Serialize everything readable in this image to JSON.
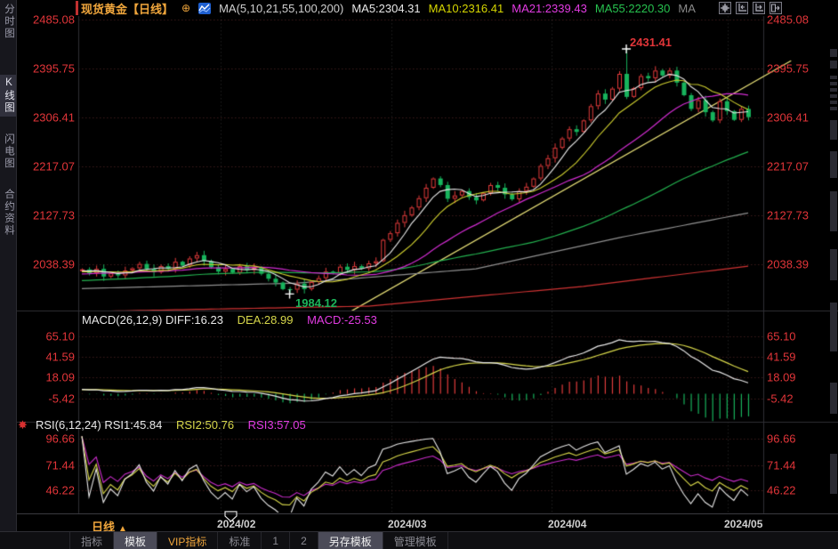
{
  "sidebar": {
    "items": [
      {
        "label": "分时图",
        "selected": false
      },
      {
        "label": "K线图",
        "selected": true
      },
      {
        "label": "闪电图",
        "selected": false
      },
      {
        "label": "合约资料",
        "selected": false
      }
    ]
  },
  "header": {
    "title": "现货黄金",
    "period_tag": "【日线】",
    "plus_icon": "⊕",
    "legend": {
      "ma_group": "MA(5,10,21,55,100,200)",
      "ma5": "MA5:2304.31",
      "ma10": "MA10:2316.41",
      "ma21": "MA21:2339.43",
      "ma55": "MA55:2220.30",
      "ma_extra": "MA"
    },
    "icons": [
      "pan-icon",
      "shift-left-icon",
      "shift-right-icon",
      "page-right-icon"
    ]
  },
  "macd": {
    "name": "MACD(26,12,9)",
    "diff": "DIFF:16.23",
    "dea": "DEA:28.99",
    "macd": "MACD:-25.53",
    "axis_labels": [
      "65.10",
      "41.59",
      "18.09",
      "-5.42"
    ]
  },
  "rsi": {
    "gear_icon": "✸",
    "name": "RSI(6,12,24)",
    "rsi1": "RSI1:45.84",
    "rsi2": "RSI2:50.76",
    "rsi3": "RSI3:57.05",
    "axis_labels": [
      "96.66",
      "71.44",
      "46.22"
    ]
  },
  "bottom": {
    "period": "日线",
    "period_arrow": "▲",
    "tabs": [
      {
        "label": "指标",
        "style": "plain"
      },
      {
        "label": "模板",
        "style": "active"
      },
      {
        "label": "VIP指标",
        "style": "vip"
      },
      {
        "label": "标准",
        "style": "plain"
      },
      {
        "label": "1",
        "style": "plain"
      },
      {
        "label": "2",
        "style": "plain"
      },
      {
        "label": "另存模板",
        "style": "active"
      },
      {
        "label": "管理模板",
        "style": "plain"
      }
    ]
  },
  "chart_data": {
    "type": "candlestick",
    "title": "现货黄金 日线 (Spot Gold Daily)",
    "price_axis_labels": [
      "2485.08",
      "2395.75",
      "2306.41",
      "2217.07",
      "2127.73",
      "2038.39"
    ],
    "x_labels": [
      "2024/02",
      "2024/03",
      "2024/04",
      "2024/05"
    ],
    "closes": [
      2029,
      2022,
      2030,
      2016,
      2022,
      2018,
      2027,
      2031,
      2039,
      2030,
      2024,
      2035,
      2030,
      2043,
      2036,
      2049,
      2055,
      2044,
      2033,
      2025,
      2030,
      2023,
      2035,
      2028,
      2032,
      2021,
      2012,
      2005,
      1993,
      1992,
      2003,
      1993,
      2006,
      2013,
      2025,
      2022,
      2034,
      2028,
      2035,
      2031,
      2040,
      2044,
      2083,
      2095,
      2114,
      2128,
      2142,
      2159,
      2178,
      2195,
      2183,
      2158,
      2164,
      2172,
      2161,
      2155,
      2168,
      2183,
      2178,
      2166,
      2157,
      2172,
      2180,
      2195,
      2218,
      2232,
      2251,
      2268,
      2285,
      2280,
      2301,
      2327,
      2350,
      2339,
      2359,
      2386,
      2344,
      2360,
      2382,
      2378,
      2392,
      2383,
      2392,
      2370,
      2347,
      2322,
      2338,
      2316,
      2301,
      2336,
      2318,
      2302,
      2322,
      2307
    ],
    "high_annotation": {
      "index": 76,
      "price": 2431.41,
      "label": "2431.41"
    },
    "low_annotation": {
      "index": 29,
      "price": 1984.12,
      "label": "1984.12"
    },
    "ma_periods": [
      5,
      10,
      21,
      55
    ],
    "ma100_points": [
      [
        0,
        1994
      ],
      [
        30,
        2004
      ],
      [
        55,
        2030
      ],
      [
        75,
        2087
      ],
      [
        93,
        2132
      ]
    ],
    "ma200_points": [
      [
        0,
        1952
      ],
      [
        40,
        1962
      ],
      [
        70,
        1998
      ],
      [
        93,
        2035
      ]
    ],
    "trendline_points": [
      [
        34,
        1926
      ],
      [
        99,
        2410
      ]
    ],
    "macd_axis": [
      65.1,
      41.59,
      18.09,
      -5.42
    ],
    "rsi_axis": [
      96.66,
      71.44,
      46.22
    ],
    "macd_params": [
      26,
      12,
      9
    ],
    "rsi_params": [
      6,
      12,
      24
    ],
    "price_range": [
      2038.39,
      2485.08
    ]
  },
  "colors": {
    "up": "#e23b3b",
    "down": "#17b35c",
    "ma5": "#e8e8e8",
    "ma10": "#cfcf2f",
    "ma21": "#d12cd1",
    "ma55": "#23b14f",
    "ma100": "#909090",
    "ma200": "#cf3333",
    "trendline": "#e9e178",
    "diff": "#e8e8e8",
    "dea": "#d8d84a",
    "rsi3": "#cc2ccc",
    "axis_text": "#e23539",
    "accent": "#f0a63c"
  }
}
